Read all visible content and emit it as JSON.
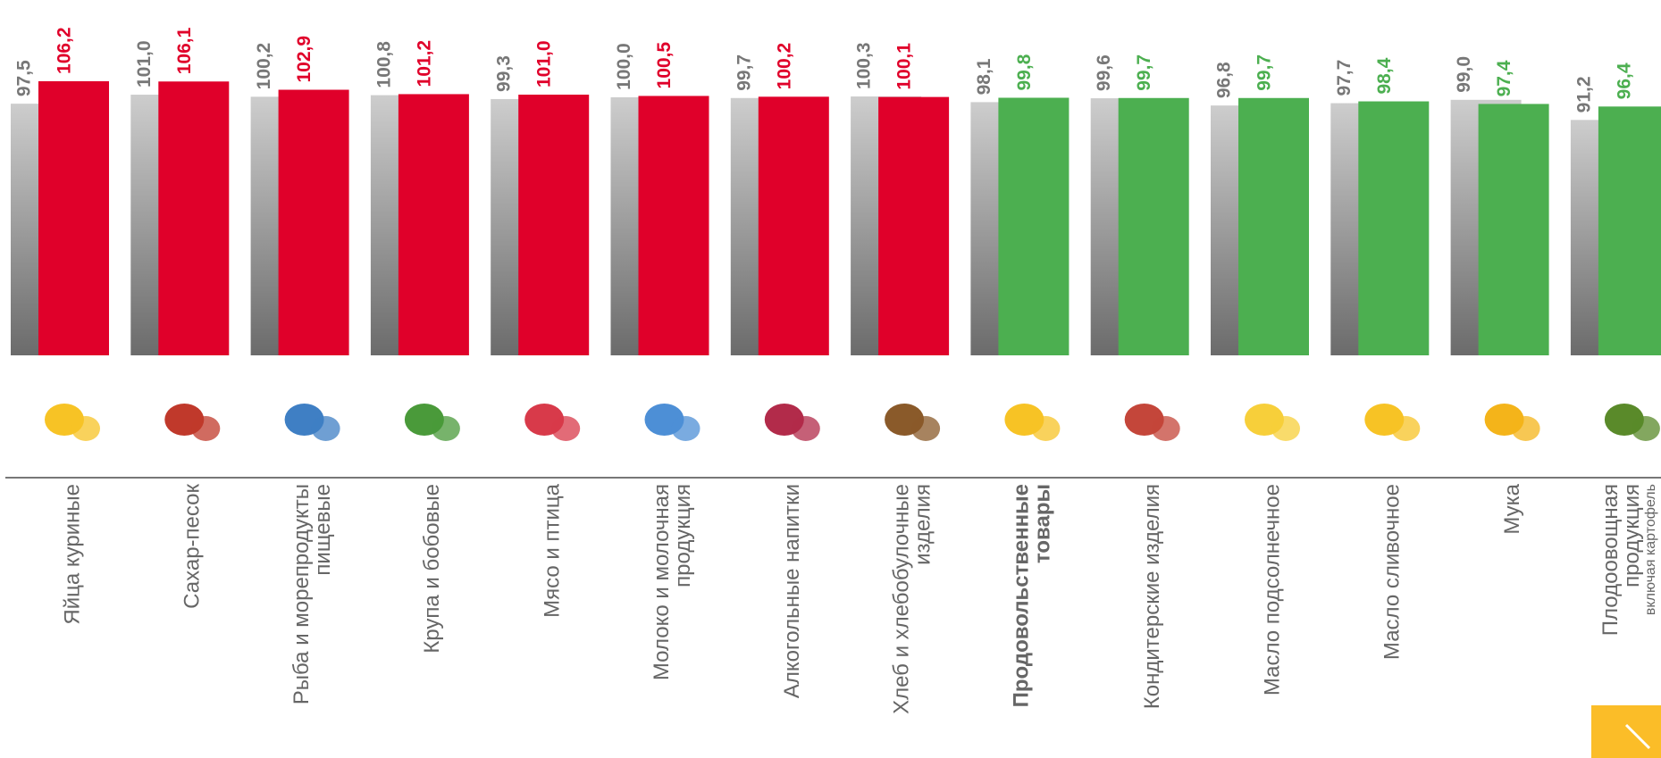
{
  "chart_data": {
    "type": "bar",
    "categories": [
      [
        "Яйца куриные"
      ],
      [
        "Сахар-песок"
      ],
      [
        "Рыба и морепродукты",
        "пищевые"
      ],
      [
        "Крупа и бобовые"
      ],
      [
        "Мясо и птица"
      ],
      [
        "Молоко и молочная",
        "продукция"
      ],
      [
        "Алкогольные напитки"
      ],
      [
        "Хлеб и хлебобулочные",
        "изделия"
      ],
      [
        "Продовольственные",
        "товары"
      ],
      [
        "Кондитерские изделия"
      ],
      [
        "Масло подсолнечное"
      ],
      [
        "Масло сливочное"
      ],
      [
        "Мука"
      ],
      [
        "Плодоовощная",
        "продукция"
      ]
    ],
    "category_note": {
      "index": 13,
      "text": "включая картофель"
    },
    "bold_category": 8,
    "ylim": [
      0,
      110
    ],
    "series": [
      {
        "color": "#8a8a8a",
        "values": [
          97.5,
          101.0,
          100.2,
          100.8,
          99.3,
          100.0,
          99.7,
          100.3,
          98.1,
          99.6,
          96.8,
          97.7,
          99.0,
          91.2
        ],
        "value_labels": [
          "97,5",
          "101,0",
          "100,2",
          "100,8",
          "99,3",
          "100,0",
          "99,7",
          "100,3",
          "98,1",
          "99,6",
          "96,8",
          "97,7",
          "99,0",
          "91,2"
        ]
      },
      {
        "colors": [
          "#e0002a",
          "#e0002a",
          "#e0002a",
          "#e0002a",
          "#e0002a",
          "#e0002a",
          "#e0002a",
          "#e0002a",
          "#4caf50",
          "#4caf50",
          "#4caf50",
          "#4caf50",
          "#4caf50",
          "#4caf50"
        ],
        "values": [
          106.2,
          106.1,
          102.9,
          101.2,
          101.0,
          100.5,
          100.2,
          100.1,
          99.8,
          99.7,
          99.7,
          98.4,
          97.4,
          96.4
        ],
        "value_labels": [
          "106,2",
          "106,1",
          "102,9",
          "101,2",
          "101,0",
          "100,5",
          "100,2",
          "100,1",
          "99,8",
          "99,7",
          "99,7",
          "98,4",
          "97,4",
          "96,4"
        ]
      }
    ]
  }
}
